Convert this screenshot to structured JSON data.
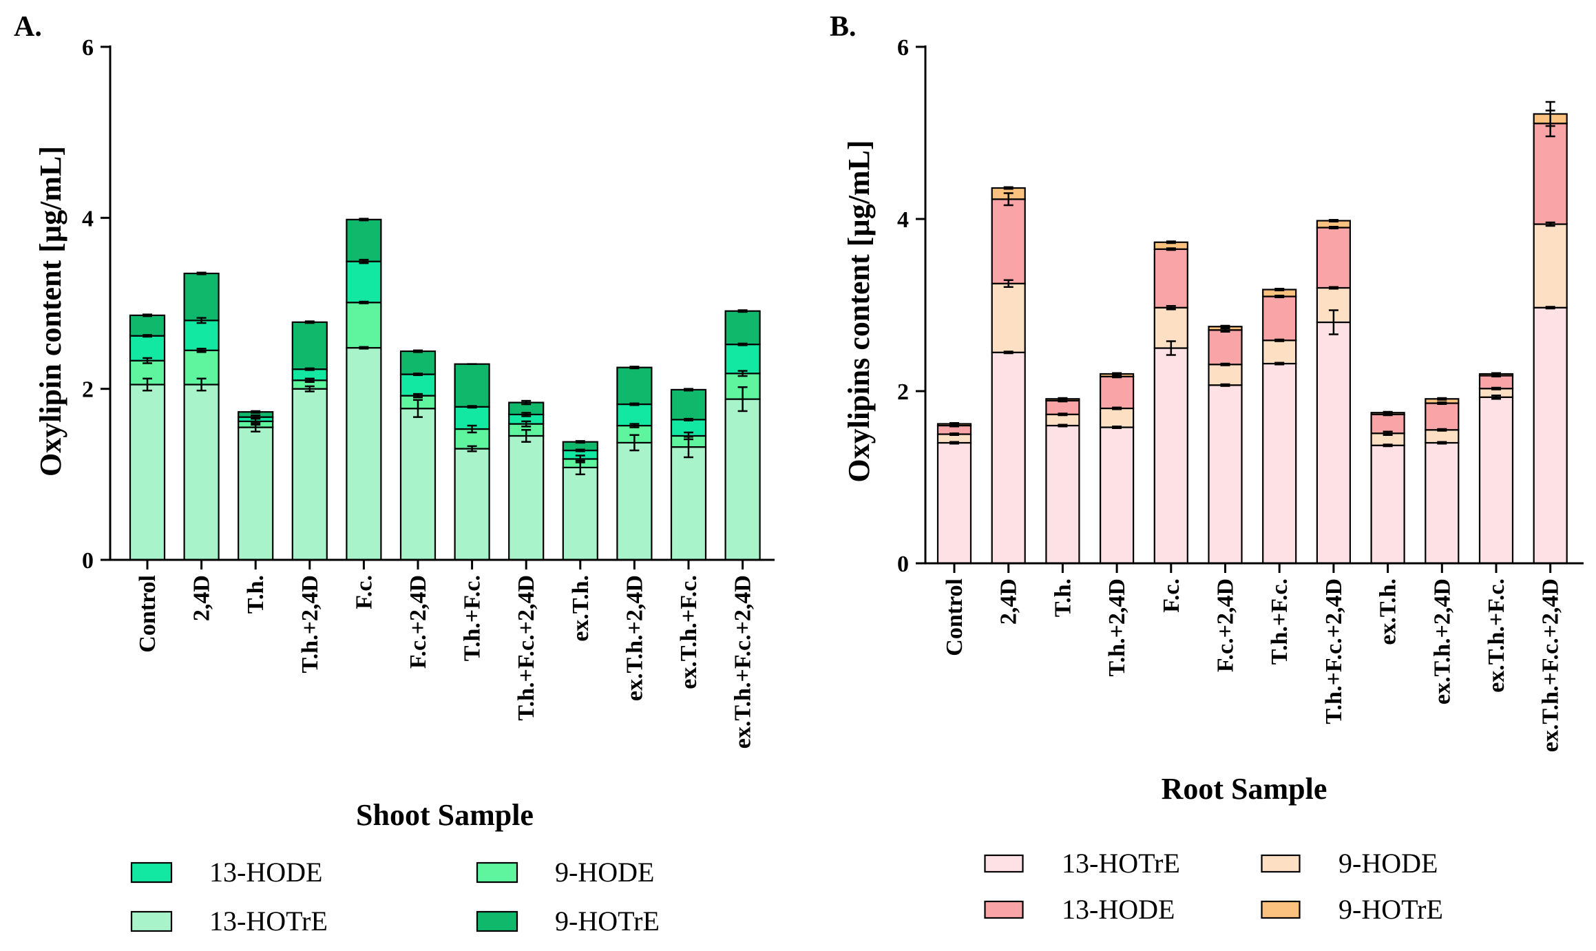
{
  "chart_data": [
    {
      "type": "bar",
      "stacked": true,
      "panel_label": "A.",
      "title": "",
      "xlabel": "Shoot Sample",
      "ylabel": "Oxylipin content [µg/mL]",
      "ylim": [
        0,
        6
      ],
      "yticks": [
        "0",
        "2",
        "4",
        "6"
      ],
      "categories": [
        "Control",
        "2,4D",
        "T.h.",
        "T.h.+2,4D",
        "F.c.",
        "F.c.+2,4D",
        "T.h.+F.c.",
        "T.h.+F.c.+2,4D",
        "ex.T.h.",
        "ex.T.h.+2,4D",
        "ex.T.h.+F.c.",
        "ex.T.h.+F.c.+2,4D"
      ],
      "series": [
        {
          "name": "13-HOTrE",
          "color": "#a8f3c9",
          "values": [
            2.05,
            2.05,
            1.55,
            2.0,
            2.48,
            1.77,
            1.3,
            1.45,
            1.08,
            1.37,
            1.32,
            1.88
          ],
          "errors": [
            0.07,
            0.07,
            0.05,
            0.03,
            0.01,
            0.1,
            0.03,
            0.07,
            0.08,
            0.09,
            0.12,
            0.14
          ]
        },
        {
          "name": "9-HODE",
          "color": "#5ef59e",
          "values": [
            0.28,
            0.4,
            0.07,
            0.1,
            0.53,
            0.15,
            0.23,
            0.14,
            0.1,
            0.2,
            0.13,
            0.3
          ],
          "errors": [
            0.03,
            0.02,
            0.04,
            0.02,
            0.01,
            0.02,
            0.04,
            0.03,
            0.04,
            0.02,
            0.04,
            0.03
          ]
        },
        {
          "name": "13-HODE",
          "color": "#13e8a3",
          "values": [
            0.29,
            0.35,
            0.05,
            0.13,
            0.48,
            0.25,
            0.26,
            0.11,
            0.1,
            0.25,
            0.19,
            0.34
          ],
          "errors": [
            0.01,
            0.03,
            0.02,
            0.01,
            0.02,
            0.01,
            0.01,
            0.02,
            0.01,
            0.01,
            0.01,
            0.01
          ]
        },
        {
          "name": "9-HOTrE",
          "color": "#0fb86a",
          "values": [
            0.24,
            0.55,
            0.06,
            0.55,
            0.49,
            0.27,
            0.5,
            0.14,
            0.1,
            0.43,
            0.35,
            0.39
          ],
          "errors": [
            0.01,
            0.01,
            0.01,
            0.01,
            0.01,
            0.01,
            0.0,
            0.02,
            0.01,
            0.01,
            0.01,
            0.01
          ]
        }
      ],
      "legend": [
        {
          "label": "13-HODE",
          "color": "#13e8a3"
        },
        {
          "label": "9-HODE",
          "color": "#5ef59e"
        },
        {
          "label": "13-HOTrE",
          "color": "#a8f3c9"
        },
        {
          "label": "9-HOTrE",
          "color": "#0fb86a"
        }
      ],
      "legend_position": "bottom"
    },
    {
      "type": "bar",
      "stacked": true,
      "panel_label": "B.",
      "title": "",
      "xlabel": "Root Sample",
      "ylabel": "Oxylipins content [µg/mL]",
      "ylim": [
        0,
        6
      ],
      "yticks": [
        "0",
        "2",
        "4",
        "6"
      ],
      "categories": [
        "Control",
        "2,4D",
        "T.h.",
        "T.h.+2,4D",
        "F.c.",
        "F.c.+2,4D",
        "T.h.+F.c.",
        "T.h.+F.c.+2,4D",
        "ex.T.h.",
        "ex.T.h.+2,4D",
        "ex.T.h.+F.c.",
        "ex.T.h.+F.c.+2,4D"
      ],
      "series": [
        {
          "name": "13-HOTrE",
          "color": "#fde1e4",
          "values": [
            1.4,
            2.45,
            1.6,
            1.58,
            2.5,
            2.07,
            2.32,
            2.8,
            1.37,
            1.4,
            1.93,
            2.97
          ],
          "errors": [
            0.01,
            0.01,
            0.01,
            0.01,
            0.08,
            0.01,
            0.01,
            0.14,
            0.01,
            0.01,
            0.02,
            0.01
          ]
        },
        {
          "name": "9-HODE",
          "color": "#fde0c3",
          "values": [
            0.1,
            0.8,
            0.13,
            0.22,
            0.47,
            0.24,
            0.27,
            0.4,
            0.14,
            0.15,
            0.1,
            0.97
          ],
          "errors": [
            0.01,
            0.04,
            0.01,
            0.01,
            0.02,
            0.01,
            0.01,
            0.01,
            0.02,
            0.01,
            0.01,
            0.02
          ]
        },
        {
          "name": "13-HODE",
          "color": "#f9a5a7",
          "values": [
            0.1,
            0.98,
            0.16,
            0.37,
            0.68,
            0.4,
            0.51,
            0.7,
            0.22,
            0.31,
            0.15,
            1.17
          ],
          "errors": [
            0.01,
            0.07,
            0.01,
            0.01,
            0.01,
            0.02,
            0.01,
            0.01,
            0.01,
            0.01,
            0.01,
            0.15
          ]
        },
        {
          "name": "9-HOTrE",
          "color": "#fbc17f",
          "values": [
            0.02,
            0.13,
            0.02,
            0.03,
            0.08,
            0.04,
            0.08,
            0.08,
            0.02,
            0.05,
            0.02,
            0.11
          ],
          "errors": [
            0.01,
            0.01,
            0.01,
            0.01,
            0.01,
            0.01,
            0.01,
            0.01,
            0.01,
            0.01,
            0.01,
            0.14
          ]
        }
      ],
      "legend": [
        {
          "label": "13-HOTrE",
          "color": "#fde1e4"
        },
        {
          "label": "9-HODE",
          "color": "#fde0c3"
        },
        {
          "label": "13-HODE",
          "color": "#f9a5a7"
        },
        {
          "label": "9-HOTrE",
          "color": "#fbc17f"
        }
      ],
      "legend_position": "bottom"
    }
  ]
}
